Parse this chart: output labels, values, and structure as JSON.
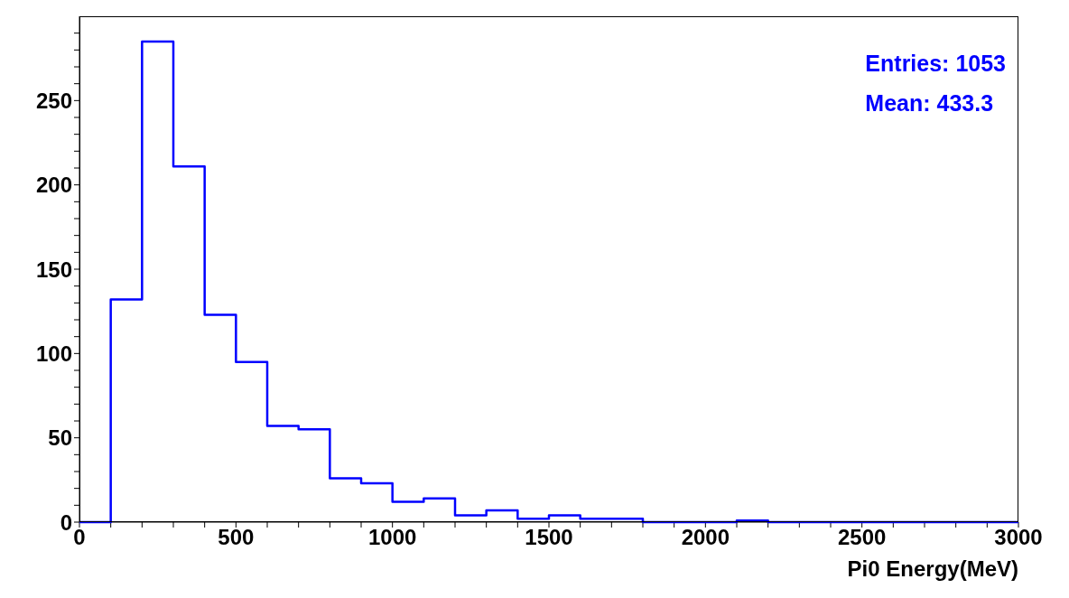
{
  "chart_data": {
    "type": "histogram",
    "xlabel": "Pi0 Energy(MeV)",
    "annotations": [
      "Entries: 1053",
      "Mean: 433.3"
    ],
    "bins": [
      0,
      100,
      200,
      300,
      400,
      500,
      600,
      700,
      800,
      900,
      1000,
      1100,
      1200,
      1300,
      1400,
      1500,
      1600,
      1700,
      1800,
      1900,
      2000,
      2100,
      2200,
      2300,
      2400,
      2500,
      2600,
      2700,
      2800,
      2900,
      3000
    ],
    "values": [
      0,
      132,
      285,
      211,
      123,
      95,
      57,
      55,
      26,
      23,
      12,
      14,
      4,
      7,
      2,
      4,
      2,
      2,
      0,
      0,
      0,
      1,
      0,
      0,
      0,
      0,
      0,
      0,
      0,
      0
    ],
    "color": "#0000ff",
    "xlim": [
      0,
      3000
    ],
    "xticks": [
      0,
      {
        "value": 100,
        "label": null
      },
      {
        "value": 200,
        "label": null
      },
      {
        "value": 300,
        "label": null
      },
      {
        "value": 400,
        "label": null
      },
      500,
      {
        "value": 600,
        "label": null
      },
      {
        "value": 700,
        "label": null
      },
      {
        "value": 800,
        "label": null
      },
      {
        "value": 900,
        "label": null
      },
      1000,
      {
        "value": 1100,
        "label": null
      },
      {
        "value": 1200,
        "label": null
      },
      {
        "value": 1300,
        "label": null
      },
      {
        "value": 1400,
        "label": null
      },
      1500,
      {
        "value": 1600,
        "label": null
      },
      {
        "value": 1700,
        "label": null
      },
      {
        "value": 1800,
        "label": null
      },
      {
        "value": 1900,
        "label": null
      },
      2000,
      {
        "value": 2100,
        "label": null
      },
      {
        "value": 2200,
        "label": null
      },
      {
        "value": 2300,
        "label": null
      },
      {
        "value": 2400,
        "label": null
      },
      2500,
      {
        "value": 2600,
        "label": null
      },
      {
        "value": 2700,
        "label": null
      },
      {
        "value": 2800,
        "label": null
      },
      {
        "value": 2900,
        "label": null
      },
      3000
    ],
    "ylim": [
      0,
      300
    ],
    "yticks": [
      0,
      {
        "value": 10,
        "label": null
      },
      {
        "value": 20,
        "label": null
      },
      {
        "value": 30,
        "label": null
      },
      {
        "value": 40,
        "label": null
      },
      50,
      {
        "value": 60,
        "label": null
      },
      {
        "value": 70,
        "label": null
      },
      {
        "value": 80,
        "label": null
      },
      {
        "value": 90,
        "label": null
      },
      100,
      {
        "value": 110,
        "label": null
      },
      {
        "value": 120,
        "label": null
      },
      {
        "value": 130,
        "label": null
      },
      {
        "value": 140,
        "label": null
      },
      150,
      {
        "value": 160,
        "label": null
      },
      {
        "value": 170,
        "label": null
      },
      {
        "value": 180,
        "label": null
      },
      {
        "value": 190,
        "label": null
      },
      200,
      {
        "value": 210,
        "label": null
      },
      {
        "value": 220,
        "label": null
      },
      {
        "value": 230,
        "label": null
      },
      {
        "value": 240,
        "label": null
      },
      250,
      {
        "value": 260,
        "label": null
      },
      {
        "value": 270,
        "label": null
      },
      {
        "value": 280,
        "label": null
      },
      {
        "value": 290,
        "label": null
      }
    ],
    "grid": false,
    "legend": false
  }
}
